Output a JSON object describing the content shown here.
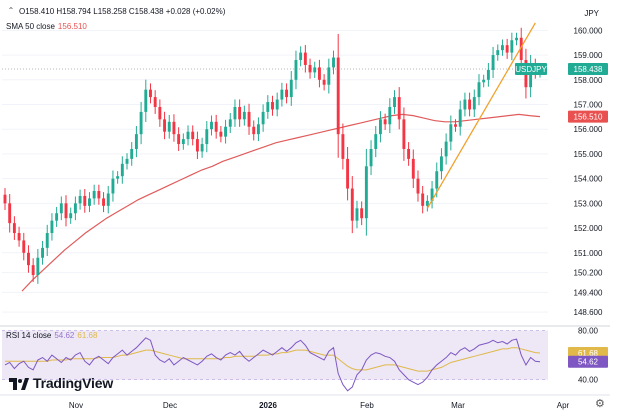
{
  "header": {
    "ohlc_label": "O158.410 H158.794 L158.258 C158.438 +0.028 (+0.02%)",
    "sma_label": "SMA 50 close",
    "sma_value": "156.510",
    "currency": "JPY"
  },
  "rsi_header": {
    "label": "RSI 14 close",
    "value1": "54.62",
    "value2": "61.68"
  },
  "brand": {
    "name": "TradingView"
  },
  "colors": {
    "up": "#22ab94",
    "down": "#f23645",
    "sma": "#e05b5b",
    "trend": "#f2a12b",
    "rsi": "#7e57c2",
    "rsi_ma": "#e0b94a",
    "rsi_band": "#ede7f6"
  },
  "chart_data": [
    {
      "type": "candlestick",
      "title": "USDJPY",
      "x_ticks": [
        "Nov",
        "Dec",
        "2026",
        "Feb",
        "Mar",
        "Apr"
      ],
      "y_ticks": [
        160.0,
        159.0,
        158.0,
        157.0,
        156.0,
        155.0,
        154.0,
        153.0,
        152.0,
        151.0,
        150.2,
        149.4,
        148.6
      ],
      "ylim": [
        148.2,
        160.5
      ],
      "last_price_label": "USDJPY",
      "last_price": 158.438,
      "sma_label_value": 156.51,
      "closes": [
        153.0,
        152.2,
        151.8,
        151.5,
        151.0,
        150.5,
        150.1,
        150.8,
        151.2,
        151.8,
        152.3,
        152.6,
        153.0,
        152.4,
        152.6,
        153.0,
        153.3,
        152.9,
        153.2,
        153.5,
        153.2,
        152.9,
        153.4,
        154.0,
        154.1,
        154.6,
        154.8,
        155.2,
        155.8,
        156.7,
        157.6,
        157.3,
        156.9,
        156.4,
        155.9,
        156.3,
        155.8,
        155.4,
        155.6,
        155.9,
        155.6,
        155.1,
        155.4,
        156.0,
        156.3,
        155.9,
        155.7,
        156.1,
        156.4,
        156.9,
        156.4,
        156.7,
        156.1,
        155.8,
        156.2,
        156.7,
        157.1,
        156.8,
        157.2,
        157.6,
        157.3,
        158.0,
        158.8,
        159.1,
        158.6,
        158.3,
        158.5,
        158.0,
        157.8,
        158.5,
        158.9,
        155.8,
        154.8,
        153.6,
        152.3,
        152.8,
        152.4,
        154.5,
        155.2,
        155.8,
        156.4,
        156.2,
        156.9,
        157.3,
        156.4,
        155.2,
        154.8,
        154.0,
        153.4,
        152.9,
        153.1,
        153.6,
        154.3,
        154.9,
        155.5,
        156.2,
        156.1,
        156.8,
        157.2,
        156.8,
        157.3,
        157.9,
        158.0,
        158.4,
        159.0,
        159.2,
        159.4,
        159.1,
        159.6,
        159.7,
        158.8,
        157.7,
        158.6,
        158.3,
        158.438
      ],
      "sma": [
        149.45,
        149.9,
        150.3,
        150.7,
        151.1,
        151.45,
        151.8,
        152.1,
        152.4,
        152.65,
        152.9,
        153.15,
        153.35,
        153.55,
        153.75,
        153.95,
        154.15,
        154.35,
        154.5,
        154.7,
        154.85,
        155.0,
        155.15,
        155.3,
        155.45,
        155.55,
        155.65,
        155.75,
        155.85,
        155.95,
        156.05,
        156.15,
        156.25,
        156.35,
        156.45,
        156.55,
        156.6,
        156.55,
        156.45,
        156.35,
        156.3,
        156.3,
        156.35,
        156.4,
        156.45,
        156.5,
        156.55,
        156.6,
        156.55,
        156.51
      ],
      "trendline": [
        [
          90,
          152.8
        ],
        [
          113,
          160.3
        ]
      ]
    },
    {
      "type": "line",
      "title": "RSI 14 close",
      "y_ticks": [
        80.0,
        40.0
      ],
      "ylim": [
        30,
        82
      ],
      "band": [
        40,
        60
      ],
      "last_values": [
        54.62,
        61.68
      ],
      "rsi": [
        52,
        54,
        49,
        53,
        55,
        50,
        48,
        56,
        58,
        55,
        60,
        57,
        54,
        58,
        56,
        60,
        62,
        55,
        52,
        57,
        59,
        56,
        53,
        58,
        61,
        64,
        60,
        63,
        66,
        70,
        74,
        72,
        60,
        56,
        54,
        57,
        52,
        55,
        58,
        56,
        54,
        52,
        55,
        59,
        61,
        58,
        56,
        60,
        62,
        60,
        63,
        58,
        55,
        58,
        61,
        64,
        62,
        60,
        63,
        66,
        63,
        66,
        70,
        72,
        68,
        62,
        60,
        58,
        56,
        63,
        66,
        45,
        36,
        31,
        34,
        44,
        48,
        56,
        60,
        62,
        61,
        59,
        58,
        55,
        48,
        44,
        40,
        38,
        36,
        38,
        42,
        48,
        52,
        55,
        58,
        62,
        60,
        64,
        66,
        63,
        65,
        68,
        69,
        70,
        72,
        70,
        71,
        69,
        72,
        73,
        60,
        52,
        58,
        55,
        54.62
      ],
      "rsi_ma": [
        55,
        55,
        55,
        55,
        55,
        55,
        55,
        55,
        55,
        55,
        56,
        56,
        56,
        56,
        57,
        57,
        57,
        57,
        57,
        57,
        58,
        58,
        58,
        58,
        59,
        60,
        60,
        61,
        62,
        63,
        64,
        64,
        63,
        62,
        61,
        60,
        59,
        58,
        57,
        57,
        57,
        57,
        57,
        57,
        57,
        57,
        57,
        58,
        58,
        59,
        59,
        59,
        59,
        59,
        60,
        60,
        60,
        61,
        61,
        62,
        62,
        63,
        64,
        64,
        64,
        63,
        62,
        61,
        60,
        60,
        60,
        57,
        54,
        51,
        49,
        48,
        48,
        48,
        49,
        50,
        51,
        52,
        52,
        52,
        51,
        50,
        49,
        48,
        47,
        47,
        47,
        48,
        49,
        50,
        52,
        54,
        55,
        56,
        57,
        58,
        59,
        60,
        61,
        62,
        63,
        64,
        65,
        65,
        66,
        66,
        65,
        64,
        63,
        62,
        61.68
      ]
    }
  ]
}
